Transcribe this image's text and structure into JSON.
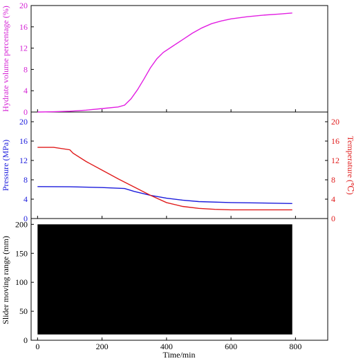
{
  "chart_data": [
    {
      "type": "line",
      "panel": "top",
      "xlabel": "",
      "ylabel": "Hydrate volume percentage (%)",
      "xlim": [
        -20,
        900
      ],
      "ylim": [
        0,
        20
      ],
      "yticks": [
        "0",
        "4",
        "8",
        "12",
        "16",
        "20"
      ],
      "grid": false,
      "axis_color": "#d41fd4",
      "series": [
        {
          "color": "#e21ee2",
          "x": [
            0,
            50,
            100,
            150,
            200,
            250,
            270,
            290,
            310,
            330,
            350,
            370,
            390,
            420,
            450,
            480,
            510,
            540,
            570,
            600,
            650,
            700,
            750,
            790
          ],
          "y": [
            0,
            0.05,
            0.15,
            0.35,
            0.65,
            0.95,
            1.3,
            2.5,
            4.2,
            6.2,
            8.3,
            10.0,
            11.2,
            12.4,
            13.6,
            14.8,
            15.8,
            16.6,
            17.1,
            17.5,
            17.9,
            18.2,
            18.4,
            18.6
          ]
        }
      ]
    },
    {
      "type": "line",
      "panel": "middle",
      "xlabel": "",
      "ylabel": "Pressure (MPa)",
      "ylabel_right": "Temperature (℃)",
      "xlim": [
        -20,
        900
      ],
      "ylim": [
        0,
        22
      ],
      "yticks": [
        "0",
        "4",
        "8",
        "12",
        "16",
        "20"
      ],
      "grid": false,
      "series": [
        {
          "axis": "left",
          "color": "#1a1adc",
          "x": [
            0,
            100,
            200,
            270,
            300,
            350,
            400,
            450,
            500,
            600,
            700,
            790
          ],
          "y": [
            6.6,
            6.55,
            6.4,
            6.2,
            5.6,
            4.8,
            4.2,
            3.8,
            3.5,
            3.3,
            3.2,
            3.1
          ]
        },
        {
          "axis": "right",
          "color": "#e01a1a",
          "x": [
            0,
            50,
            100,
            110,
            150,
            200,
            250,
            300,
            350,
            400,
            450,
            500,
            550,
            600,
            700,
            790
          ],
          "y": [
            14.7,
            14.7,
            14.2,
            13.5,
            11.8,
            10.0,
            8.2,
            6.5,
            4.8,
            3.3,
            2.5,
            2.1,
            1.9,
            1.8,
            1.8,
            1.8
          ]
        }
      ]
    },
    {
      "type": "area",
      "panel": "bottom",
      "xlabel": "Time/min",
      "ylabel": "Slider moving range (mm)",
      "xlim": [
        -20,
        900
      ],
      "ylim": [
        0,
        210
      ],
      "xticks": [
        "0",
        "200",
        "400",
        "600",
        "800"
      ],
      "yticks": [
        "0",
        "50",
        "100",
        "150",
        "200"
      ],
      "grid": false,
      "series": [
        {
          "color": "#000000",
          "x_range": [
            0,
            790
          ],
          "y_band": [
            10,
            200
          ]
        }
      ]
    }
  ]
}
